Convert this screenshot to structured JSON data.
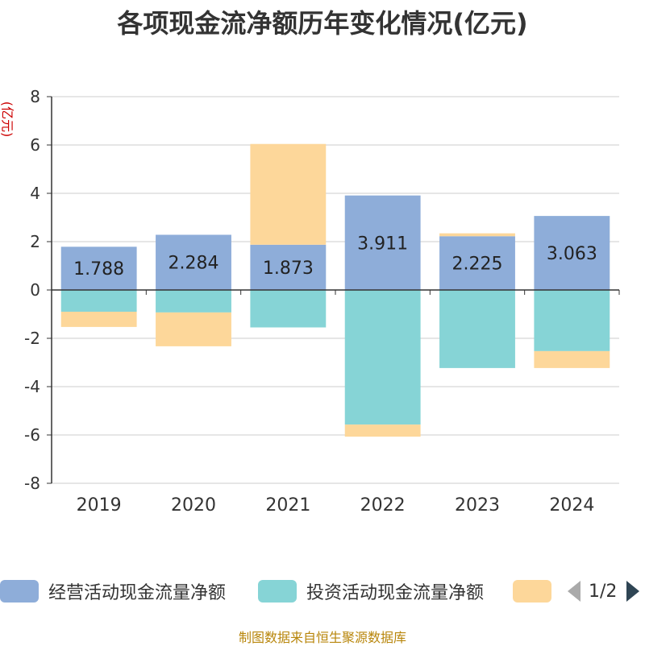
{
  "chart_data": {
    "type": "bar",
    "stacked": true,
    "title": "各项现金流净额历年变化情况(亿元)",
    "ylabel": "(亿元)",
    "xlabel": "",
    "categories": [
      "2019",
      "2020",
      "2021",
      "2022",
      "2023",
      "2024"
    ],
    "ylim": [
      -8,
      8
    ],
    "yticks": [
      8,
      6,
      4,
      2,
      0,
      -2,
      -4,
      -6,
      -8
    ],
    "grid": true,
    "series": [
      {
        "name": "经营活动现金流量净额",
        "color": "#8eadd9",
        "values": [
          1.788,
          2.284,
          1.873,
          3.911,
          2.225,
          3.063
        ],
        "labels": [
          "1.788",
          "2.284",
          "1.873",
          "3.911",
          "2.225",
          "3.063"
        ]
      },
      {
        "name": "投资活动现金流量净额",
        "color": "#86d4d6",
        "values": [
          -0.9,
          -0.93,
          -1.55,
          -5.57,
          -3.23,
          -2.53
        ]
      },
      {
        "name": "",
        "color": "#fdd79a",
        "values": [
          -0.63,
          -1.4,
          4.17,
          -0.5,
          0.12,
          -0.7
        ]
      }
    ]
  },
  "legend": {
    "items": [
      {
        "label": "经营活动现金流量净额",
        "color": "#8eadd9"
      },
      {
        "label": "投资活动现金流量净额",
        "color": "#86d4d6"
      },
      {
        "label": "",
        "color": "#fdd79a"
      }
    ],
    "page": "1/2"
  },
  "source": "制图数据来自恒生聚源数据库"
}
